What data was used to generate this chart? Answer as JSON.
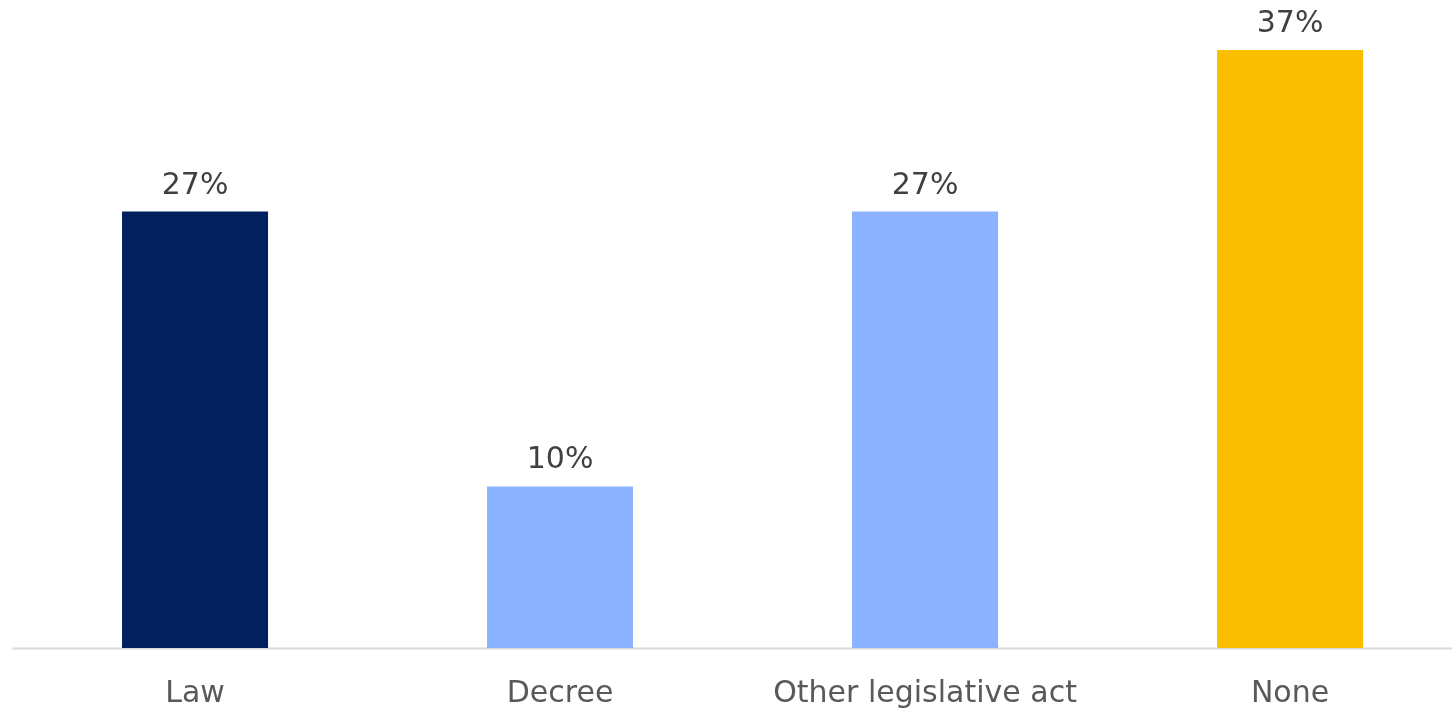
{
  "chart_data": {
    "type": "bar",
    "categories": [
      "Law",
      "Decree",
      "Other legislative act",
      "None"
    ],
    "values": [
      27,
      10,
      27,
      37
    ],
    "colors": [
      "#03205e",
      "#8bb2ff",
      "#8bb2ff",
      "#fcbf00"
    ],
    "value_labels": [
      "27%",
      "10%",
      "27%",
      "37%"
    ],
    "tick_labels": "x"
  }
}
